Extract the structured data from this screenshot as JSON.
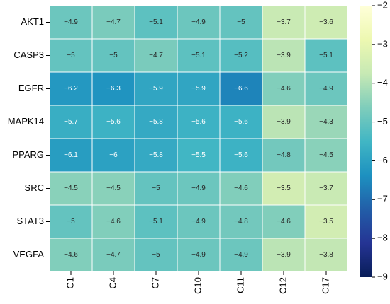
{
  "chart_data": {
    "type": "heatmap",
    "x_categories": [
      "C1",
      "C4",
      "C7",
      "C10",
      "C11",
      "C12",
      "C17"
    ],
    "y_categories": [
      "AKT1",
      "CASP3",
      "EGFR",
      "MAPK14",
      "PPARG",
      "SRC",
      "STAT3",
      "VEGFA"
    ],
    "values": [
      [
        -4.9,
        -4.7,
        -5.1,
        -4.9,
        -5,
        -3.7,
        -3.6
      ],
      [
        -5,
        -5,
        -4.7,
        -5.1,
        -5.2,
        -3.9,
        -5.1
      ],
      [
        -6.2,
        -6.3,
        -5.9,
        -5.9,
        -6.6,
        -4.6,
        -4.9
      ],
      [
        -5.7,
        -5.6,
        -5.8,
        -5.6,
        -5.6,
        -3.9,
        -4.3
      ],
      [
        -6.1,
        -6,
        -5.8,
        -5.5,
        -5.6,
        -4.8,
        -4.5
      ],
      [
        -4.5,
        -4.5,
        -5,
        -4.9,
        -4.6,
        -3.5,
        -3.7
      ],
      [
        -5,
        -4.6,
        -5.1,
        -4.9,
        -4.8,
        -4.6,
        -3.5
      ],
      [
        -4.6,
        -4.7,
        -5,
        -4.9,
        -4.9,
        -3.9,
        -3.8
      ]
    ],
    "value_labels": [
      [
        "−4.9",
        "−4.7",
        "−5.1",
        "−4.9",
        "−5",
        "−3.7",
        "−3.6"
      ],
      [
        "−5",
        "−5",
        "−4.7",
        "−5.1",
        "−5.2",
        "−3.9",
        "−5.1"
      ],
      [
        "−6.2",
        "−6.3",
        "−5.9",
        "−5.9",
        "−6.6",
        "−4.6",
        "−4.9"
      ],
      [
        "−5.7",
        "−5.6",
        "−5.8",
        "−5.6",
        "−5.6",
        "−3.9",
        "−4.3"
      ],
      [
        "−6.1",
        "−6",
        "−5.8",
        "−5.5",
        "−5.6",
        "−4.8",
        "−4.5"
      ],
      [
        "−4.5",
        "−4.5",
        "−5",
        "−4.9",
        "−4.6",
        "−3.5",
        "−3.7"
      ],
      [
        "−5",
        "−4.6",
        "−5.1",
        "−4.9",
        "−4.8",
        "−4.6",
        "−3.5"
      ],
      [
        "−4.6",
        "−4.7",
        "−5",
        "−4.9",
        "−4.9",
        "−3.9",
        "−3.8"
      ]
    ],
    "zlim": [
      -9,
      -2
    ],
    "zticks": [
      {
        "value": -2,
        "label": "−2"
      },
      {
        "value": -3,
        "label": "−3"
      },
      {
        "value": -4,
        "label": "−4"
      },
      {
        "value": -5,
        "label": "−5"
      },
      {
        "value": -6,
        "label": "−6"
      },
      {
        "value": -7,
        "label": "−7"
      },
      {
        "value": -8,
        "label": "−8"
      },
      {
        "value": -9,
        "label": "−9"
      }
    ],
    "colormap": [
      "#081d58",
      "#253494",
      "#225ea8",
      "#1d91c0",
      "#41b6c4",
      "#7fcdbb",
      "#c7e9b4",
      "#edf8b1",
      "#ffffd9"
    ]
  }
}
